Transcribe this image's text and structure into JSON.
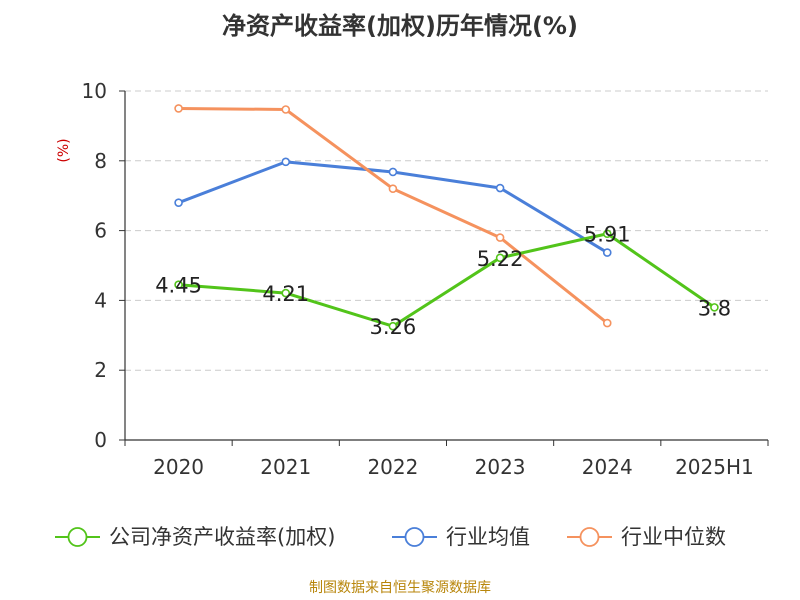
{
  "chart_data": {
    "type": "line",
    "title": "净资产收益率(加权)历年情况(%)",
    "ylabel": "(%)",
    "xlabel": "",
    "categories": [
      "2020",
      "2021",
      "2022",
      "2023",
      "2024",
      "2025H1"
    ],
    "ylim": [
      0,
      10
    ],
    "yticks": [
      0,
      2,
      4,
      6,
      8,
      10
    ],
    "grid": true,
    "legend_position": "bottom",
    "series": [
      {
        "name": "公司净资产收益率(加权)",
        "color": "#52c41a",
        "values": [
          4.45,
          4.21,
          3.26,
          5.22,
          5.91,
          3.8
        ],
        "labels": [
          "4.45",
          "4.21",
          "3.26",
          "5.22",
          "5.91",
          "3.8"
        ]
      },
      {
        "name": "行业均值",
        "color": "#4a7fd9",
        "values": [
          6.8,
          7.97,
          7.68,
          7.22,
          5.37,
          null
        ],
        "labels": []
      },
      {
        "name": "行业中位数",
        "color": "#f5925e",
        "values": [
          9.5,
          9.47,
          7.2,
          5.8,
          3.35,
          null
        ],
        "labels": []
      }
    ]
  },
  "source": "制图数据来自恒生聚源数据库"
}
